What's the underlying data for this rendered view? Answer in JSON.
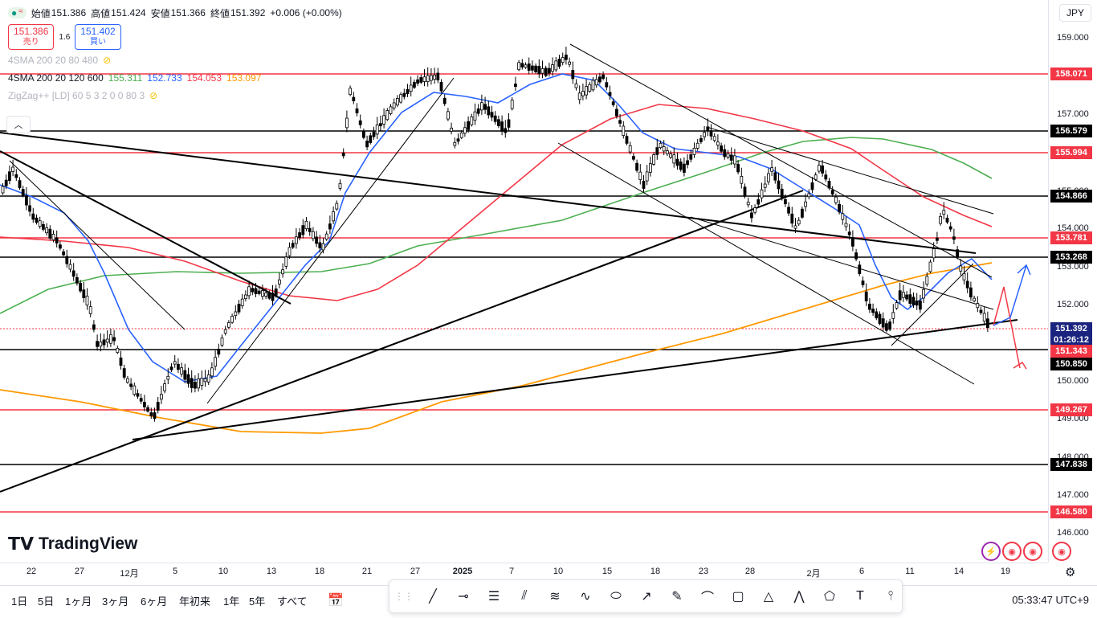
{
  "legend": {
    "open_label": "始値",
    "open": "151.386",
    "high_label": "高値",
    "high": "151.424",
    "low_label": "安値",
    "low": "151.366",
    "close_label": "終値",
    "close": "151.392",
    "change": "+0.006 (+0.00%)",
    "sell_price": "151.386",
    "sell_label": "売り",
    "spread": "1.6",
    "buy_price": "151.402",
    "buy_label": "買い",
    "ind1_name": "4SMA 200 20 80 480",
    "ind2_name": "4SMA 200 20 120 600",
    "ind2_values": [
      {
        "v": "155.311",
        "color": "#4caf50"
      },
      {
        "v": "152.733",
        "color": "#2962ff"
      },
      {
        "v": "154.053",
        "color": "#f23645"
      },
      {
        "v": "153.097",
        "color": "#ff9800"
      }
    ],
    "ind3_name": "ZigZag++ [LD] 60 5 3 2 0 0 80 3"
  },
  "currency": "JPY",
  "price_axis": {
    "ticks": [
      "159.000",
      "157.000",
      "155.000",
      "154.000",
      "153.000",
      "152.000",
      "150.000",
      "149.000",
      "148.000",
      "147.000",
      "146.000"
    ],
    "labels": [
      {
        "text": "158.071",
        "color": "#f23645"
      },
      {
        "text": "156.579",
        "color": "#000000"
      },
      {
        "text": "155.994",
        "color": "#f23645"
      },
      {
        "text": "154.866",
        "color": "#000000"
      },
      {
        "text": "153.781",
        "color": "#f23645"
      },
      {
        "text": "153.268",
        "color": "#000000"
      },
      {
        "text": "151.392",
        "color": "#1a237e"
      },
      {
        "text": "01:26:12",
        "color": "#1a237e"
      },
      {
        "text": "151.343",
        "color": "#f23645"
      },
      {
        "text": "150.850",
        "color": "#000000"
      },
      {
        "text": "149.267",
        "color": "#f23645"
      },
      {
        "text": "147.838",
        "color": "#000000"
      },
      {
        "text": "146.580",
        "color": "#f23645"
      }
    ]
  },
  "time_axis": [
    "22",
    "27",
    "12月",
    "5",
    "10",
    "13",
    "18",
    "21",
    "27",
    "2025",
    "7",
    "10",
    "15",
    "18",
    "23",
    "28",
    "2月",
    "6",
    "11",
    "14",
    "19"
  ],
  "timeframes": [
    "1日",
    "5日",
    "1ヶ月",
    "3ヶ月",
    "6ヶ月",
    "年初来",
    "1年",
    "5年",
    "すべて"
  ],
  "tools": [
    "trend-line",
    "horizontal-ray",
    "parallel-channel",
    "regression",
    "fib-retracement",
    "path",
    "ellipse",
    "arrow",
    "brush",
    "curve",
    "rectangle",
    "triangle",
    "pattern",
    "polyline",
    "text",
    "long-position"
  ],
  "clock": "05:33:47 UTC+9",
  "brand": "TradingView"
}
